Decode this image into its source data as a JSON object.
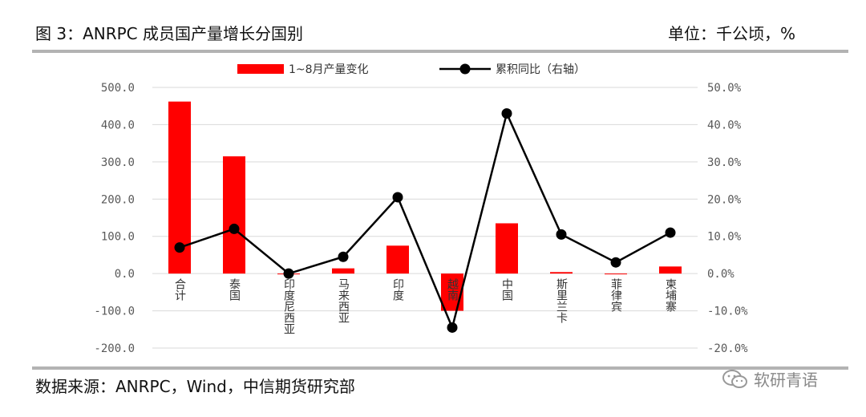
{
  "header": {
    "title": "图 3：ANRPC 成员国产量增长分国别",
    "unit": "单位：千公顷，%"
  },
  "footer": {
    "source": "数据来源：ANRPC，Wind，中信期货研究部",
    "watermark": "软研青语"
  },
  "colors": {
    "bar": "#ff0000",
    "line": "#000000",
    "grid": "#d9d9d9",
    "rule": "#b3b3b3"
  },
  "chart_data": {
    "type": "bar",
    "categories": [
      "合计",
      "泰国",
      "印度尼西亚",
      "马来西亚",
      "印度",
      "越南",
      "中国",
      "斯里兰卡",
      "菲律宾",
      "柬埔寨"
    ],
    "series": [
      {
        "name": "1~8月产量变化",
        "type": "bar",
        "axis": "left",
        "values": [
          462,
          315,
          -2,
          14,
          75,
          -100,
          135,
          4,
          -2,
          19
        ]
      },
      {
        "name": "累积同比（右轴）",
        "type": "line",
        "axis": "right",
        "values": [
          7.0,
          12.0,
          0.0,
          4.5,
          20.5,
          -14.5,
          43.0,
          10.5,
          3.0,
          11.0
        ]
      }
    ],
    "y_left": {
      "min": -200,
      "max": 500,
      "step": 100,
      "tick_labels": [
        "-200.0",
        "-100.0",
        "0.0",
        "100.0",
        "200.0",
        "300.0",
        "400.0",
        "500.0"
      ]
    },
    "y_right": {
      "min": -20,
      "max": 50,
      "step": 10,
      "tick_labels": [
        "-20.0%",
        "-10.0%",
        "0.0%",
        "10.0%",
        "20.0%",
        "30.0%",
        "40.0%",
        "50.0%"
      ]
    },
    "legend_position": "top",
    "grid": true
  }
}
